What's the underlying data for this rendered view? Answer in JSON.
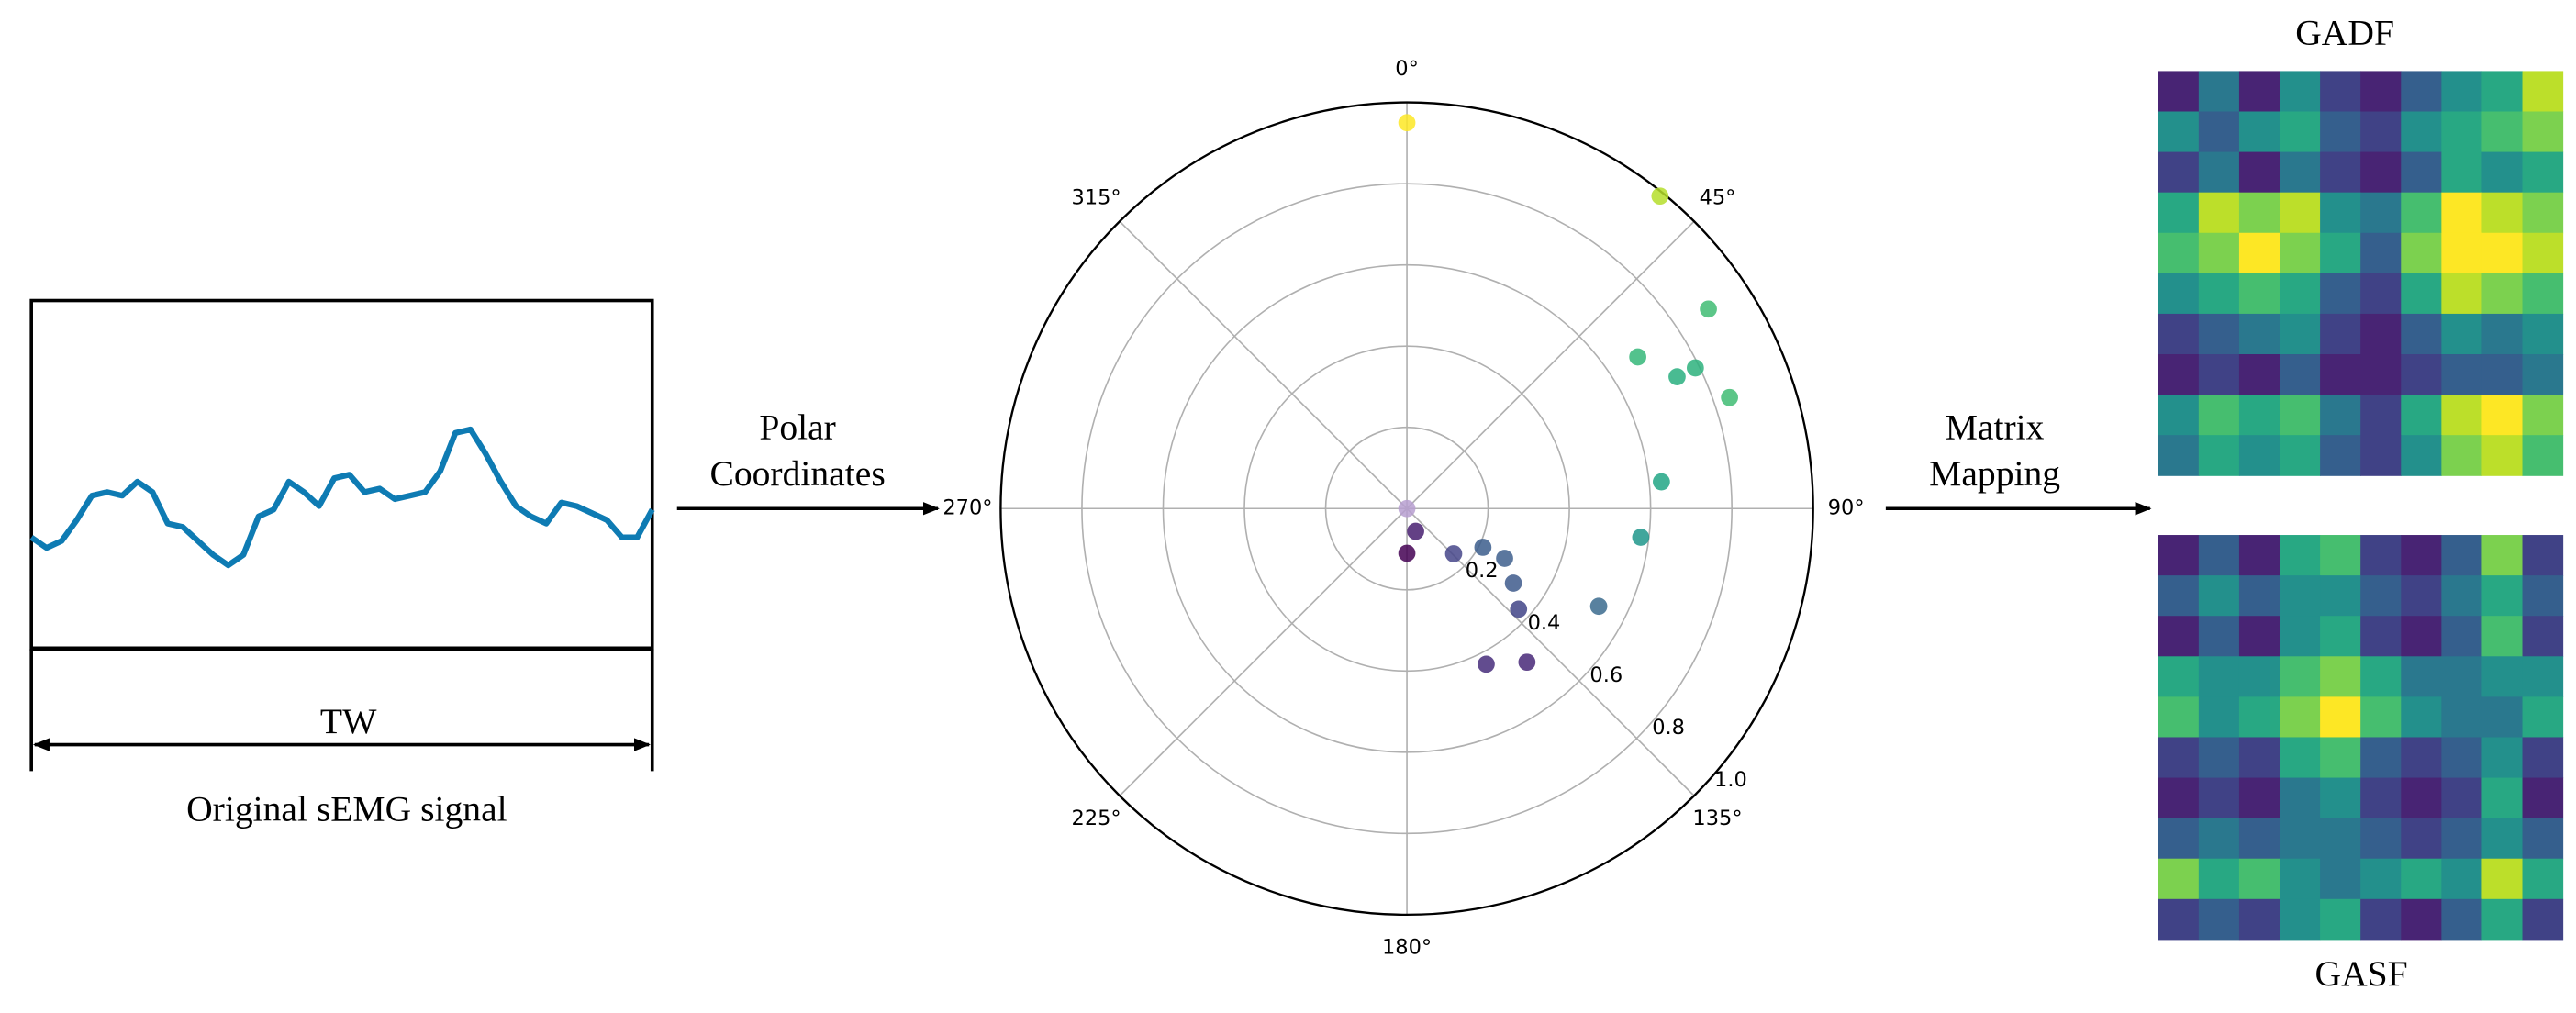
{
  "signal": {
    "values": [
      0.32,
      0.29,
      0.31,
      0.37,
      0.44,
      0.45,
      0.44,
      0.48,
      0.45,
      0.36,
      0.35,
      0.31,
      0.27,
      0.24,
      0.27,
      0.38,
      0.4,
      0.48,
      0.45,
      0.41,
      0.49,
      0.5,
      0.45,
      0.46,
      0.43,
      0.44,
      0.45,
      0.51,
      0.62,
      0.63,
      0.56,
      0.48,
      0.41,
      0.38,
      0.36,
      0.42,
      0.41,
      0.39,
      0.37,
      0.32,
      0.32,
      0.4
    ],
    "ylim": [
      0,
      1
    ],
    "color": "#0e7bb3",
    "window_label": "TW",
    "caption": "Original sEMG signal"
  },
  "arrow_1": {
    "label": [
      "Polar",
      "Coordinates"
    ]
  },
  "polar_plot": {
    "type": "polar-scatter",
    "theta": [
      0,
      39,
      56.5,
      56.7,
      64,
      64,
      71,
      84,
      97,
      117,
      132,
      125,
      117,
      117,
      134,
      142,
      153,
      159,
      180,
      0
    ],
    "r": [
      0.95,
      0.99,
      0.89,
      0.68,
      0.79,
      0.74,
      0.84,
      0.63,
      0.58,
      0.53,
      0.37,
      0.32,
      0.27,
      0.21,
      0.16,
      0.48,
      0.43,
      0.06,
      0.11,
      0
    ],
    "colors": [
      "#fde725",
      "#b5de2b",
      "#3fbc73",
      "#35b779",
      "#2db27d",
      "#29af7f",
      "#3fbc73",
      "#21a685",
      "#1f968b",
      "#3b6b8e",
      "#414487",
      "#3e5a8c",
      "#3e5f8d",
      "#3b5d8c",
      "#46468a",
      "#482878",
      "#472d7b",
      "#481f70",
      "#440154",
      "#b79fd0"
    ],
    "rlim": [
      0,
      1
    ],
    "rticks": [
      0.2,
      0.4,
      0.6,
      0.8,
      {
        "value": 1,
        "label": "1.0"
      }
    ],
    "thetaticks": [
      {
        "value": 0,
        "label": "0°"
      },
      {
        "value": 45,
        "label": "45°"
      },
      {
        "value": 90,
        "label": "90°"
      },
      {
        "value": 135,
        "label": "135°"
      },
      {
        "value": 180,
        "label": "180°"
      },
      {
        "value": 225,
        "label": "225°"
      },
      {
        "value": 270,
        "label": "270°"
      },
      {
        "value": 315,
        "label": "315°"
      }
    ]
  },
  "arrow_2": {
    "label": [
      "Matrix",
      "Mapping"
    ]
  },
  "gadf": {
    "title": "GADF",
    "clim": [
      0,
      1
    ],
    "matrix": [
      [
        0.1,
        0.4,
        0.1,
        0.5,
        0.2,
        0.1,
        0.3,
        0.5,
        0.6,
        0.9
      ],
      [
        0.5,
        0.3,
        0.5,
        0.6,
        0.3,
        0.2,
        0.5,
        0.6,
        0.7,
        0.8
      ],
      [
        0.2,
        0.4,
        0.1,
        0.4,
        0.2,
        0.1,
        0.3,
        0.6,
        0.5,
        0.6
      ],
      [
        0.6,
        0.9,
        0.8,
        0.9,
        0.5,
        0.4,
        0.7,
        1.0,
        0.9,
        0.8
      ],
      [
        0.7,
        0.8,
        1.0,
        0.8,
        0.6,
        0.3,
        0.8,
        1.0,
        1.0,
        0.9
      ],
      [
        0.5,
        0.6,
        0.7,
        0.6,
        0.3,
        0.2,
        0.6,
        0.9,
        0.8,
        0.7
      ],
      [
        0.2,
        0.3,
        0.4,
        0.5,
        0.2,
        0.1,
        0.3,
        0.5,
        0.4,
        0.5
      ],
      [
        0.1,
        0.2,
        0.1,
        0.3,
        0.1,
        0.1,
        0.2,
        0.3,
        0.3,
        0.4
      ],
      [
        0.5,
        0.7,
        0.6,
        0.7,
        0.4,
        0.2,
        0.6,
        0.9,
        1.0,
        0.8
      ],
      [
        0.4,
        0.6,
        0.5,
        0.6,
        0.3,
        0.2,
        0.5,
        0.8,
        0.9,
        0.7
      ]
    ]
  },
  "gasf": {
    "title": "GASF",
    "clim": [
      0,
      1
    ],
    "matrix": [
      [
        0.1,
        0.3,
        0.1,
        0.6,
        0.7,
        0.2,
        0.1,
        0.3,
        0.8,
        0.2
      ],
      [
        0.3,
        0.5,
        0.3,
        0.5,
        0.5,
        0.3,
        0.2,
        0.4,
        0.6,
        0.3
      ],
      [
        0.1,
        0.3,
        0.1,
        0.5,
        0.6,
        0.2,
        0.1,
        0.3,
        0.7,
        0.2
      ],
      [
        0.6,
        0.5,
        0.5,
        0.7,
        0.8,
        0.6,
        0.4,
        0.4,
        0.5,
        0.5
      ],
      [
        0.7,
        0.5,
        0.6,
        0.8,
        1.0,
        0.7,
        0.5,
        0.4,
        0.4,
        0.6
      ],
      [
        0.2,
        0.3,
        0.2,
        0.6,
        0.7,
        0.3,
        0.2,
        0.3,
        0.5,
        0.2
      ],
      [
        0.1,
        0.2,
        0.1,
        0.4,
        0.5,
        0.2,
        0.1,
        0.2,
        0.6,
        0.1
      ],
      [
        0.3,
        0.4,
        0.3,
        0.4,
        0.4,
        0.3,
        0.2,
        0.3,
        0.5,
        0.3
      ],
      [
        0.8,
        0.6,
        0.7,
        0.5,
        0.4,
        0.5,
        0.6,
        0.5,
        0.9,
        0.6
      ],
      [
        0.2,
        0.3,
        0.2,
        0.5,
        0.6,
        0.2,
        0.1,
        0.3,
        0.6,
        0.2
      ]
    ]
  }
}
